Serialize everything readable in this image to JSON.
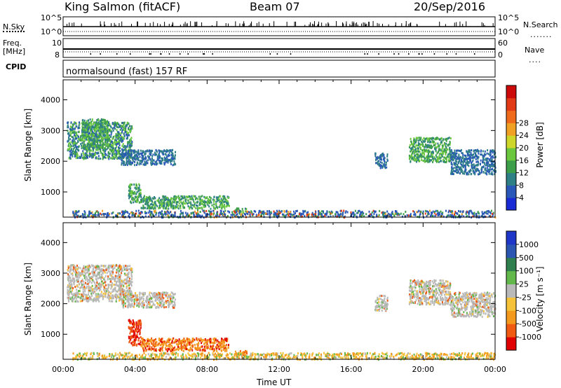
{
  "header": {
    "station": "King Salmon (fitACF)",
    "beam": "Beam 07",
    "date": "20/Sep/2016"
  },
  "params_panel": {
    "left_labels": {
      "nsky": "N.Sky",
      "freq": "Freq.",
      "freq_unit": "[MHz]",
      "cpid": "CPID"
    },
    "right_labels": {
      "nsearch": "N.Search",
      "nave": "Nave"
    },
    "nsky_ticks": [
      "10^5",
      "10^0"
    ],
    "nsearch_ticks": [
      "10^5",
      "10^0"
    ],
    "freq_ticks": [
      "10",
      "8"
    ],
    "nave_ticks": [
      "60",
      "0"
    ],
    "cpid_text": "normalsound (fast) 157 RF"
  },
  "chart_data": [
    {
      "type": "heatmap",
      "name": "power",
      "ylabel": "Slant Range [km]",
      "yticks": [
        1000,
        2000,
        3000,
        4000
      ],
      "ylim": [
        180,
        4650
      ],
      "xlim_hours": [
        0,
        24
      ],
      "colorbar": {
        "label": "Power [dB]",
        "ticks": [
          "4",
          "8",
          "12",
          "16",
          "20",
          "24",
          "28"
        ],
        "colors": [
          "#1a2bd6",
          "#2a58b8",
          "#2e7f86",
          "#3d9e4a",
          "#6bc73e",
          "#cfd62a",
          "#f0a024",
          "#f06a1c",
          "#e23a16",
          "#cc0a0a"
        ]
      },
      "patches": [
        {
          "x": [
            0.2,
            3.8
          ],
          "y": [
            2100,
            3300
          ],
          "level": "mixed_high"
        },
        {
          "x": [
            1.0,
            2.5
          ],
          "y": [
            2400,
            3400
          ],
          "level": "green"
        },
        {
          "x": [
            3.2,
            6.2
          ],
          "y": [
            1900,
            2400
          ],
          "level": "blue"
        },
        {
          "x": [
            3.6,
            4.3
          ],
          "y": [
            650,
            1300
          ],
          "level": "green"
        },
        {
          "x": [
            4.3,
            9.2
          ],
          "y": [
            480,
            900
          ],
          "level": "green"
        },
        {
          "x": [
            9.5,
            10.2
          ],
          "y": [
            350,
            500
          ],
          "level": "green"
        },
        {
          "x": [
            17.3,
            18.0
          ],
          "y": [
            1800,
            2300
          ],
          "level": "blue"
        },
        {
          "x": [
            19.2,
            21.5
          ],
          "y": [
            2000,
            2800
          ],
          "level": "green"
        },
        {
          "x": [
            21.5,
            24.0
          ],
          "y": [
            1600,
            2400
          ],
          "level": "blue"
        },
        {
          "x": [
            0.5,
            24.0
          ],
          "y": [
            200,
            420
          ],
          "level": "ground"
        }
      ]
    },
    {
      "type": "heatmap",
      "name": "velocity",
      "ylabel": "Slant Range [km]",
      "yticks": [
        1000,
        2000,
        3000,
        4000
      ],
      "ylim": [
        180,
        4650
      ],
      "xlim_hours": [
        0,
        24
      ],
      "xlabel": "Time UT",
      "xticks": [
        "00:00",
        "04:00",
        "08:00",
        "12:00",
        "16:00",
        "20:00",
        "00:00"
      ],
      "colorbar": {
        "label": "Velocity [m s⁻¹]",
        "ticks": [
          "-1000",
          "-500",
          "-100",
          "-25",
          "25",
          "100",
          "500",
          "1000"
        ],
        "colors": [
          "#e00000",
          "#f05a12",
          "#f39a1e",
          "#f5c23a",
          "#b9b9b9",
          "#62b84a",
          "#2f7f4f",
          "#2a55b0",
          "#1f37c8"
        ]
      },
      "patches": [
        {
          "x": [
            0.2,
            3.8
          ],
          "y": [
            2100,
            3300
          ],
          "level": "grey"
        },
        {
          "x": [
            3.2,
            6.2
          ],
          "y": [
            1900,
            2400
          ],
          "level": "grey"
        },
        {
          "x": [
            3.6,
            4.3
          ],
          "y": [
            650,
            1500
          ],
          "level": "red"
        },
        {
          "x": [
            4.3,
            9.2
          ],
          "y": [
            480,
            900
          ],
          "level": "orange"
        },
        {
          "x": [
            9.5,
            10.2
          ],
          "y": [
            350,
            500
          ],
          "level": "orange"
        },
        {
          "x": [
            17.3,
            18.0
          ],
          "y": [
            1800,
            2300
          ],
          "level": "grey"
        },
        {
          "x": [
            19.2,
            21.5
          ],
          "y": [
            2000,
            2800
          ],
          "level": "grey"
        },
        {
          "x": [
            21.5,
            24.0
          ],
          "y": [
            1600,
            2400
          ],
          "level": "grey"
        },
        {
          "x": [
            0.5,
            24.0
          ],
          "y": [
            200,
            420
          ],
          "level": "ground"
        }
      ]
    }
  ]
}
